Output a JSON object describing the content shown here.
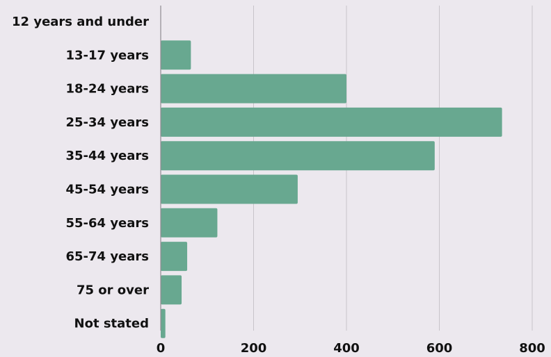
{
  "chart_data": {
    "type": "bar",
    "orientation": "horizontal",
    "categories": [
      "12 years and under",
      "13-17 years",
      "18-24 years",
      "25-34 years",
      "35-44 years",
      "45-54 years",
      "55-64 years",
      "65-74 years",
      "75 or over",
      "Not stated"
    ],
    "values": [
      0,
      65,
      400,
      735,
      590,
      295,
      122,
      57,
      45,
      10
    ],
    "x_ticks": [
      "0",
      "200",
      "400",
      "600",
      "800"
    ],
    "xlim": [
      0,
      800
    ],
    "grid": true,
    "title": "",
    "xlabel": "",
    "ylabel": "",
    "bar_color": "#68a890",
    "background_color": "#ece8ee"
  }
}
